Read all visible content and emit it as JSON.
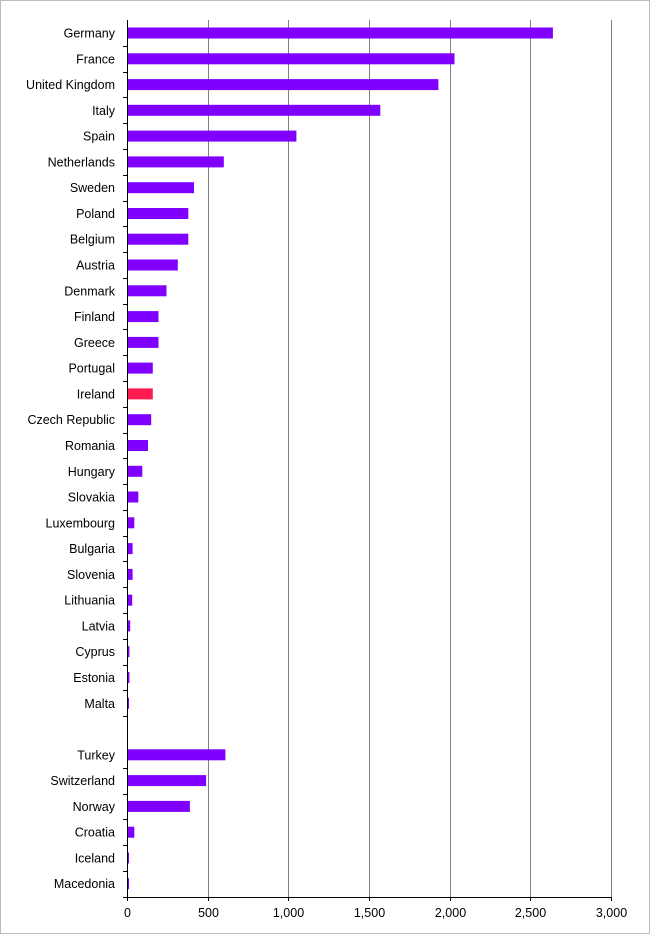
{
  "chart_data": {
    "type": "bar",
    "orientation": "horizontal",
    "title": "",
    "xlabel": "",
    "ylabel": "",
    "xlim": [
      0,
      3000
    ],
    "x_ticks": [
      0,
      500,
      1000,
      1500,
      2000,
      2500,
      3000
    ],
    "x_tick_labels": [
      "0",
      "500",
      "1,000",
      "1,500",
      "2,000",
      "2,500",
      "3,000"
    ],
    "grid": "vertical",
    "legend": "none",
    "colors": {
      "bar": "#7f00ff",
      "highlight": "#ff1a4f"
    },
    "groups": [
      {
        "categories": [
          "Germany",
          "France",
          "United Kingdom",
          "Italy",
          "Spain",
          "Netherlands",
          "Sweden",
          "Poland",
          "Belgium",
          "Austria",
          "Denmark",
          "Finland",
          "Greece",
          "Portugal",
          "Ireland",
          "Czech Republic",
          "Romania",
          "Hungary",
          "Slovakia",
          "Luxembourg",
          "Bulgaria",
          "Slovenia",
          "Lithuania",
          "Latvia",
          "Cyprus",
          "Estonia",
          "Malta"
        ],
        "values": [
          2640,
          2030,
          1930,
          1570,
          1050,
          600,
          415,
          380,
          380,
          315,
          245,
          195,
          195,
          160,
          160,
          150,
          130,
          95,
          70,
          45,
          35,
          35,
          32,
          20,
          15,
          15,
          8
        ]
      },
      {
        "categories": [
          "Turkey",
          "Switzerland",
          "Norway",
          "Croatia",
          "Iceland",
          "Macedonia"
        ],
        "values": [
          610,
          490,
          390,
          45,
          10,
          8
        ]
      }
    ],
    "highlighted": [
      "Ireland"
    ]
  }
}
